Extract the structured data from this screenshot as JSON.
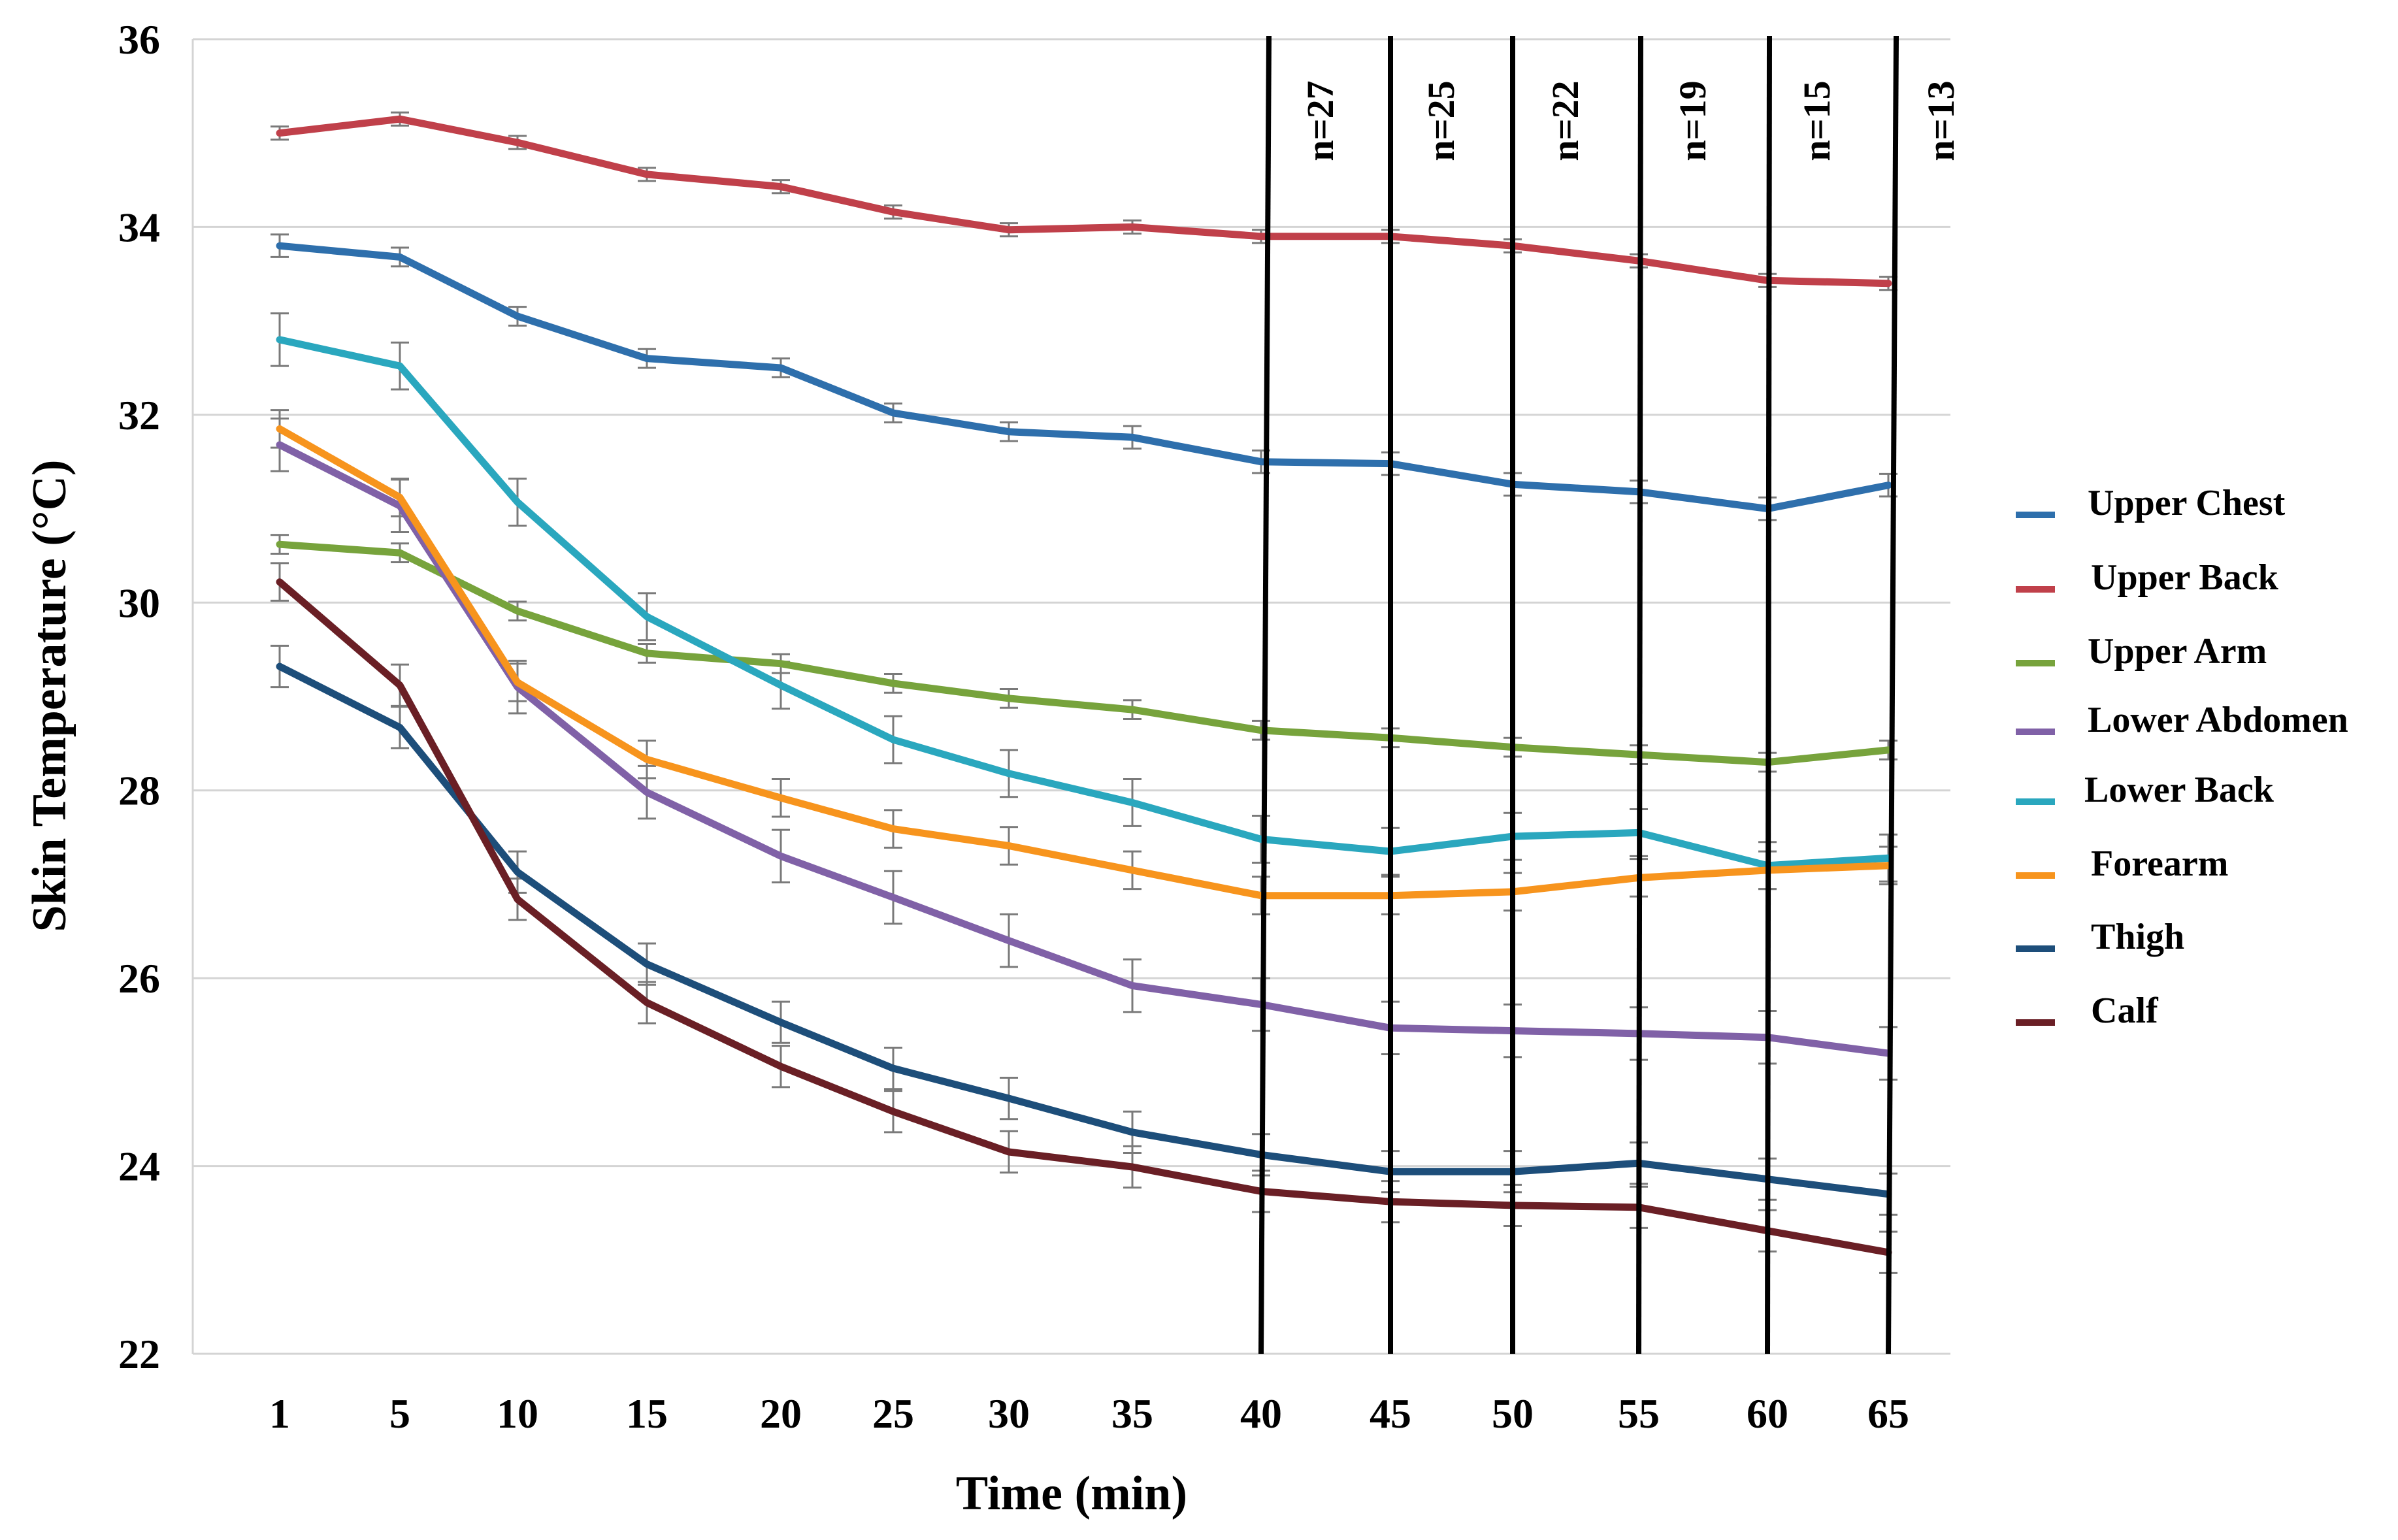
{
  "chart_data": {
    "type": "line",
    "title": "",
    "xlabel": "Time (min)",
    "ylabel": "Skin Temperature (°C)",
    "ylim": [
      22,
      36
    ],
    "yticks": [
      22,
      24,
      26,
      28,
      30,
      32,
      34,
      36
    ],
    "ytick_labels": [
      "22",
      "24",
      "26",
      "28",
      "30",
      "32",
      "34",
      "36"
    ],
    "x": [
      1,
      5,
      10,
      15,
      20,
      25,
      30,
      35,
      40,
      45,
      50,
      55,
      60,
      65
    ],
    "xtick_labels": [
      "1",
      "5",
      "10",
      "15",
      "20",
      "25",
      "30",
      "35",
      "40",
      "45",
      "50",
      "55",
      "60",
      "65"
    ],
    "grid": true,
    "legend_position": "right",
    "series": [
      {
        "name": "Upper Chest",
        "color": "#2E6FAC",
        "values": [
          33.8,
          33.68,
          33.05,
          32.6,
          32.5,
          32.02,
          31.82,
          31.76,
          31.5,
          31.48,
          31.26,
          31.18,
          31.0,
          31.25
        ],
        "err": [
          0.12,
          0.1,
          0.1,
          0.1,
          0.1,
          0.1,
          0.1,
          0.12,
          0.12,
          0.12,
          0.12,
          0.12,
          0.12,
          0.12
        ]
      },
      {
        "name": "Upper Back",
        "color": "#C0404A",
        "values": [
          35.0,
          35.15,
          34.9,
          34.56,
          34.43,
          34.16,
          33.97,
          34.0,
          33.9,
          33.9,
          33.8,
          33.64,
          33.43,
          33.4
        ],
        "err": [
          0.07,
          0.07,
          0.07,
          0.07,
          0.07,
          0.07,
          0.07,
          0.07,
          0.07,
          0.07,
          0.07,
          0.07,
          0.07,
          0.07
        ]
      },
      {
        "name": "Upper Arm",
        "color": "#77A33C",
        "values": [
          30.62,
          30.53,
          29.91,
          29.46,
          29.35,
          29.14,
          28.98,
          28.86,
          28.64,
          28.56,
          28.46,
          28.38,
          28.3,
          28.43
        ],
        "err": [
          0.1,
          0.1,
          0.1,
          0.1,
          0.1,
          0.1,
          0.1,
          0.1,
          0.1,
          0.1,
          0.1,
          0.1,
          0.1,
          0.1
        ]
      },
      {
        "name": "Lower Abdomen",
        "color": "#8061A7",
        "values": [
          31.68,
          31.03,
          29.1,
          27.98,
          27.3,
          26.86,
          26.4,
          25.92,
          25.72,
          25.47,
          25.44,
          25.41,
          25.37,
          25.2
        ],
        "err": [
          0.28,
          0.28,
          0.28,
          0.28,
          0.28,
          0.28,
          0.28,
          0.28,
          0.28,
          0.28,
          0.28,
          0.28,
          0.28,
          0.28
        ]
      },
      {
        "name": "Lower Back",
        "color": "#2AA7BE",
        "values": [
          32.8,
          32.52,
          31.07,
          29.85,
          29.12,
          28.54,
          28.18,
          27.87,
          27.48,
          27.35,
          27.51,
          27.55,
          27.2,
          27.28
        ],
        "err": [
          0.28,
          0.25,
          0.25,
          0.25,
          0.25,
          0.25,
          0.25,
          0.25,
          0.25,
          0.25,
          0.25,
          0.25,
          0.25,
          0.25
        ]
      },
      {
        "name": "Forearm",
        "color": "#F7941D",
        "values": [
          31.85,
          31.12,
          29.15,
          28.33,
          27.92,
          27.59,
          27.41,
          27.15,
          26.88,
          26.88,
          26.92,
          27.07,
          27.15,
          27.2
        ],
        "err": [
          0.2,
          0.2,
          0.2,
          0.2,
          0.2,
          0.2,
          0.2,
          0.2,
          0.2,
          0.2,
          0.2,
          0.2,
          0.2,
          0.2
        ]
      },
      {
        "name": "Thigh",
        "color": "#1D4E7A",
        "values": [
          29.32,
          28.67,
          27.13,
          26.15,
          25.53,
          25.04,
          24.72,
          24.36,
          24.12,
          23.94,
          23.94,
          24.03,
          23.86,
          23.7
        ],
        "err": [
          0.22,
          0.22,
          0.22,
          0.22,
          0.22,
          0.22,
          0.22,
          0.22,
          0.22,
          0.22,
          0.22,
          0.22,
          0.22,
          0.22
        ]
      },
      {
        "name": "Calf",
        "color": "#6A1F25",
        "values": [
          30.22,
          29.12,
          26.84,
          25.74,
          25.06,
          24.58,
          24.15,
          23.99,
          23.73,
          23.62,
          23.58,
          23.56,
          23.31,
          23.08
        ],
        "err": [
          0.2,
          0.22,
          0.22,
          0.22,
          0.22,
          0.22,
          0.22,
          0.22,
          0.22,
          0.22,
          0.22,
          0.22,
          0.22,
          0.22
        ]
      }
    ],
    "annotations": [
      {
        "x_start": 40,
        "x_end": 45,
        "label": "n=27"
      },
      {
        "x_start": 45,
        "x_end": 50,
        "label": "n=25"
      },
      {
        "x_start": 50,
        "x_end": 55,
        "label": "n=22"
      },
      {
        "x_start": 55,
        "x_end": 60,
        "label": "n=19"
      },
      {
        "x_start": 60,
        "x_end": 65,
        "label": "n=15"
      },
      {
        "x_start": 65,
        "x_end": null,
        "label": "n=13"
      }
    ]
  }
}
